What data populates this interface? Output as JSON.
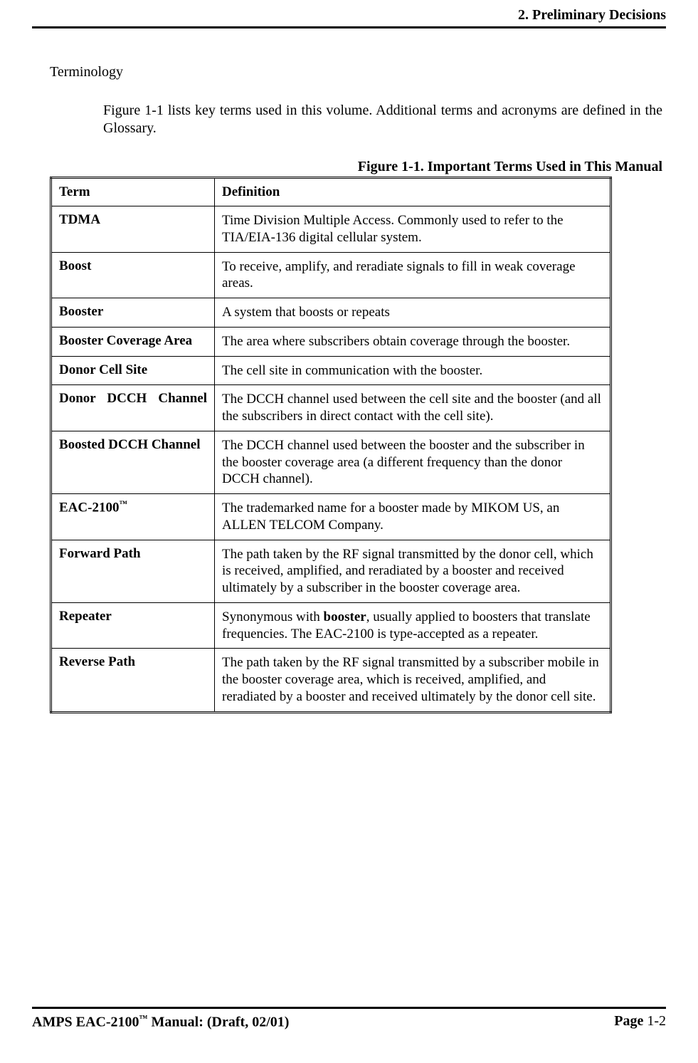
{
  "header": {
    "title": "2. Preliminary Decisions"
  },
  "section": {
    "title": "Terminology",
    "intro": "Figure 1-1 lists key terms used in this volume. Additional terms and acronyms are defined in the Glossary."
  },
  "figure": {
    "caption": "Figure 1-1. Important Terms Used in This Manual",
    "header_term": "Term",
    "header_def": "Definition",
    "rows": [
      {
        "term": "TDMA",
        "def": "Time Division Multiple Access.  Commonly used to refer to the TIA/EIA-136 digital cellular system."
      },
      {
        "term": "Boost",
        "def": "To receive, amplify, and reradiate signals to fill in weak coverage areas."
      },
      {
        "term": "Booster",
        "def": "A system that boosts or repeats"
      },
      {
        "term": "Booster Coverage Area",
        "def": "The area where subscribers obtain coverage through the booster."
      },
      {
        "term": "Donor Cell Site",
        "def": "The cell site in communication with the booster."
      },
      {
        "term": "Donor DCCH Channel",
        "def": "The DCCH channel used between the cell site and the booster (and all the subscribers in direct contact with the cell site)."
      },
      {
        "term": "Boosted DCCH Channel",
        "def": "The DCCH channel used between the booster and the subscriber in the booster coverage area (a different frequency than the donor DCCH channel)."
      },
      {
        "term": "EAC-2100",
        "term_tm": "™",
        "def": "The trademarked name for a booster made by MIKOM US, an ALLEN TELCOM Company."
      },
      {
        "term": "Forward Path",
        "def": "The path taken by the RF signal transmitted by the donor cell, which is received, amplified, and reradiated by a booster and received ultimately by a subscriber in the booster coverage area."
      },
      {
        "term": "Repeater",
        "def_pre": "Synonymous with ",
        "def_bold": "booster",
        "def_post": ", usually applied to boosters that translate frequencies. The EAC-2100 is type-accepted as a repeater."
      },
      {
        "term": "Reverse Path",
        "def": "The path taken by the RF signal transmitted by a subscriber mobile in the booster coverage area, which is received, amplified, and reradiated by a booster and received ultimately by the donor cell site."
      }
    ]
  },
  "footer": {
    "left_pre": "AMPS EAC-2100",
    "left_tm": "™",
    "left_post": " Manual: (Draft, 02/01)",
    "page_label": "Page ",
    "page_num": "1-2"
  }
}
